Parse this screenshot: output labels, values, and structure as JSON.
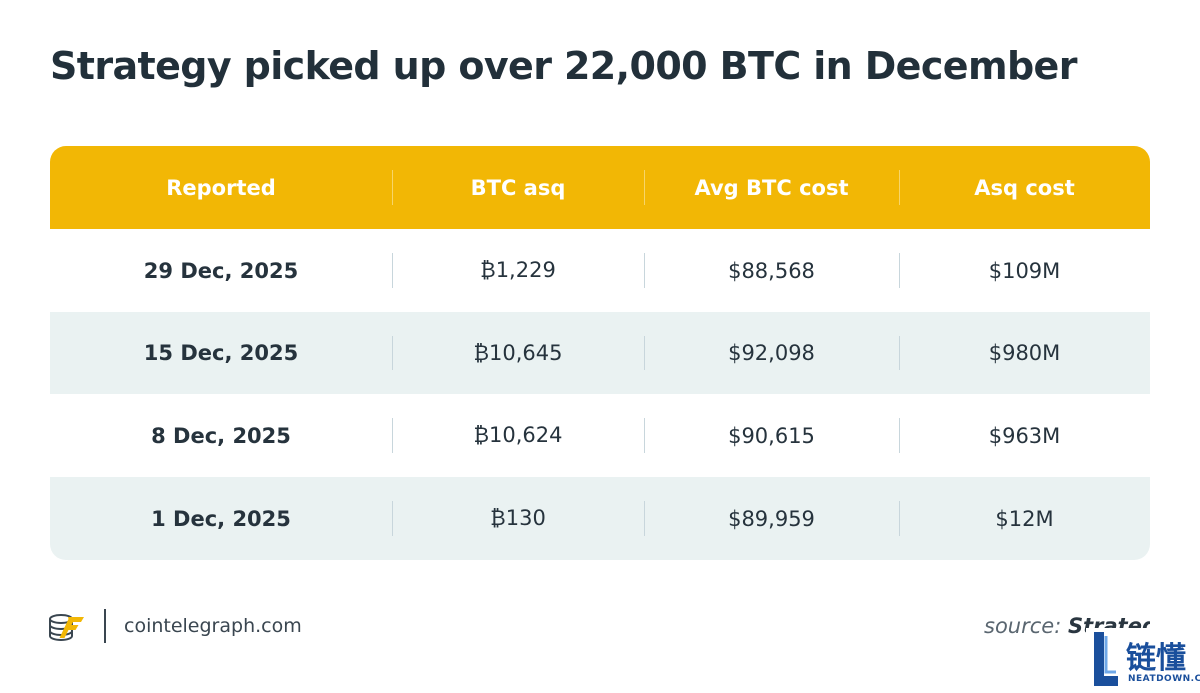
{
  "title": "Strategy picked up over 22,000 BTC in December",
  "chart_data": {
    "type": "table",
    "title": "Strategy picked up over 22,000 BTC in December",
    "columns": [
      "Reported",
      "BTC asq",
      "Avg BTC cost",
      "Asq cost"
    ],
    "rows": [
      [
        "29 Dec, 2025",
        "₿1,229",
        "$88,568",
        "$109M"
      ],
      [
        "15 Dec, 2025",
        "₿10,645",
        "$92,098",
        "$980M"
      ],
      [
        "8 Dec, 2025",
        "₿10,624",
        "$90,615",
        "$963M"
      ],
      [
        "1 Dec, 2025",
        "₿130",
        "$89,959",
        "$12M"
      ]
    ],
    "header_color": "#f2b705",
    "stripe_color": "#eaf2f2"
  },
  "footer": {
    "site": "cointelegraph.com",
    "source_label": "source:",
    "source_name": "Strategy",
    "logo_icon": "cointelegraph-logo-icon"
  },
  "watermark": {
    "cn": "链懂",
    "en": "NEATDOWN.COM",
    "icon": "neatdown-logo-icon"
  }
}
